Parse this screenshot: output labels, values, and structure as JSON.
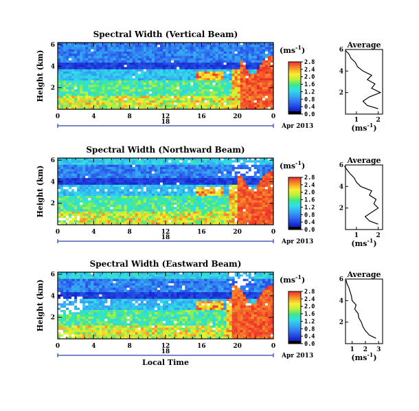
{
  "chart_data": [
    {
      "type": "heatmap",
      "title": "Spectral Width (Vertical Beam)",
      "ylabel": "Height (km)",
      "x_ticks": [
        "0",
        "4",
        "8",
        "12",
        "16",
        "20",
        "0"
      ],
      "y_ticks": [
        "2",
        "4",
        "6"
      ],
      "date_day": "18",
      "date_label": "Apr 2013",
      "colorbar_unit": "(ms",
      "colorbar_unit_sup": "-1",
      "colorbar_unit_close": ")",
      "colorbar_ticks": [
        "0.0",
        "0.4",
        "0.8",
        "1.2",
        "1.6",
        "2.0",
        "2.4",
        "2.8"
      ],
      "profile_title": "Average",
      "profile_xticks": [
        "1",
        "2"
      ],
      "profile_yticks": [
        "2",
        "4",
        "6"
      ],
      "profile_xunit": "(ms",
      "profile_xunit_sup": "-1",
      "profile_xunit_close": ")",
      "profile": {
        "height_km": [
          0.5,
          0.8,
          1.2,
          1.6,
          2.0,
          2.4,
          2.8,
          3.2,
          3.6,
          4.0,
          4.4,
          4.8,
          5.2,
          5.6,
          5.9
        ],
        "width_ms": [
          2.0,
          1.5,
          1.3,
          1.6,
          2.1,
          1.7,
          1.85,
          1.5,
          1.7,
          1.3,
          1.05,
          0.95,
          0.75,
          0.65,
          0.5
        ]
      }
    },
    {
      "type": "heatmap",
      "title": "Spectral Width (Northward Beam)",
      "ylabel": "Height (km)",
      "x_ticks": [
        "0",
        "4",
        "8",
        "12",
        "16",
        "20",
        "0"
      ],
      "y_ticks": [
        "2",
        "4",
        "6"
      ],
      "date_day": "18",
      "date_label": "Apr 2013",
      "colorbar_unit": "(ms",
      "colorbar_unit_sup": "-1",
      "colorbar_unit_close": ")",
      "colorbar_ticks": [
        "0.0",
        "0.4",
        "0.8",
        "1.2",
        "1.6",
        "2.0",
        "2.4",
        "2.8"
      ],
      "profile_title": "Average",
      "profile_xticks": [
        "1",
        "2"
      ],
      "profile_yticks": [
        "2",
        "4",
        "6"
      ],
      "profile_xunit": "(ms",
      "profile_xunit_sup": "-1",
      "profile_xunit_close": ")",
      "profile": {
        "height_km": [
          0.5,
          0.8,
          1.2,
          1.6,
          2.0,
          2.4,
          2.8,
          3.2,
          3.6,
          4.0,
          4.4,
          4.8,
          5.2,
          5.6,
          5.9
        ],
        "width_ms": [
          2.0,
          1.6,
          1.4,
          1.7,
          2.0,
          1.8,
          1.9,
          1.6,
          1.7,
          1.2,
          1.0,
          0.9,
          0.7,
          0.55,
          0.45
        ]
      }
    },
    {
      "type": "heatmap",
      "title": "Spectral Width (Eastward Beam)",
      "ylabel": "Height (km)",
      "xlabel": "Local Time",
      "x_ticks": [
        "0",
        "4",
        "8",
        "12",
        "16",
        "20",
        "0"
      ],
      "y_ticks": [
        "2",
        "4",
        "6"
      ],
      "date_day": "18",
      "date_label": "Apr 2013",
      "colorbar_unit": "(ms",
      "colorbar_unit_sup": "-1",
      "colorbar_unit_close": ")",
      "colorbar_ticks": [
        "0.0",
        "0.4",
        "0.8",
        "1.2",
        "1.6",
        "2.0",
        "2.4",
        "2.8"
      ],
      "profile_title": "Average",
      "profile_xticks": [
        "1",
        "2",
        "3"
      ],
      "profile_yticks": [
        "2",
        "4",
        "6"
      ],
      "profile_xunit": "(ms",
      "profile_xunit_sup": "-1",
      "profile_xunit_close": ")",
      "profile": {
        "height_km": [
          0.5,
          0.8,
          1.2,
          1.6,
          2.0,
          2.4,
          2.8,
          3.2,
          3.6,
          4.0,
          4.4,
          4.8,
          5.2,
          5.6,
          5.9
        ],
        "width_ms": [
          2.8,
          2.3,
          2.0,
          1.8,
          1.7,
          1.5,
          1.45,
          1.2,
          1.3,
          1.0,
          0.95,
          0.85,
          0.75,
          0.6,
          0.55
        ]
      }
    }
  ]
}
